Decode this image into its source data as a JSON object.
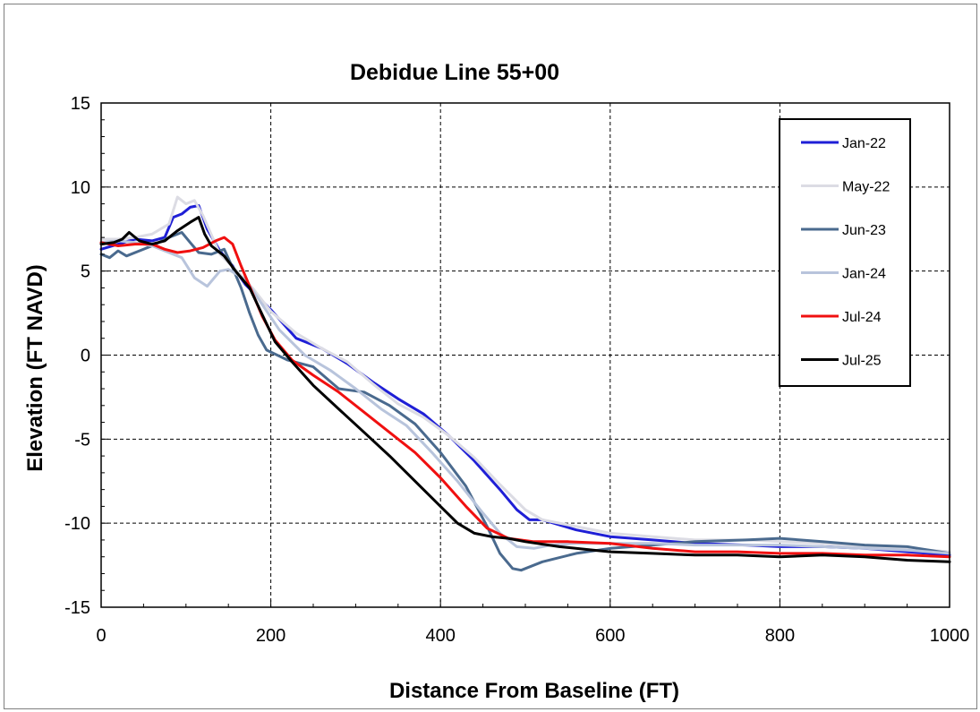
{
  "chart_data": {
    "type": "line",
    "title": "Debidue Line 55+00",
    "xlabel": "Distance From Baseline (FT)",
    "ylabel": "Elevation (FT NAVD)",
    "xlim": [
      0,
      1000
    ],
    "ylim": [
      -15,
      15
    ],
    "xticks": [
      0,
      200,
      400,
      600,
      800,
      1000
    ],
    "yticks": [
      -15,
      -10,
      -5,
      0,
      5,
      10,
      15
    ],
    "xtick_labels": [
      "0",
      "200",
      "400",
      "600",
      "800",
      "1000"
    ],
    "ytick_labels": [
      "-15",
      "-10",
      "-5",
      "0",
      "5",
      "10",
      "15"
    ],
    "grid": "dashed",
    "legend_position": "top-right",
    "series": [
      {
        "name": "Jan-22",
        "color": "#1f1fd6",
        "points": [
          [
            0,
            6.3
          ],
          [
            20,
            6.6
          ],
          [
            40,
            6.9
          ],
          [
            60,
            6.8
          ],
          [
            75,
            7.0
          ],
          [
            85,
            8.2
          ],
          [
            95,
            8.4
          ],
          [
            105,
            8.8
          ],
          [
            115,
            8.9
          ],
          [
            125,
            7.5
          ],
          [
            140,
            6.2
          ],
          [
            155,
            5.3
          ],
          [
            170,
            4.2
          ],
          [
            200,
            2.7
          ],
          [
            230,
            1.0
          ],
          [
            260,
            0.4
          ],
          [
            290,
            -0.5
          ],
          [
            320,
            -1.6
          ],
          [
            350,
            -2.6
          ],
          [
            380,
            -3.5
          ],
          [
            410,
            -4.8
          ],
          [
            440,
            -6.3
          ],
          [
            470,
            -8.0
          ],
          [
            490,
            -9.2
          ],
          [
            505,
            -9.8
          ],
          [
            520,
            -9.8
          ],
          [
            560,
            -10.4
          ],
          [
            600,
            -10.8
          ],
          [
            650,
            -11.0
          ],
          [
            700,
            -11.2
          ],
          [
            760,
            -11.3
          ],
          [
            800,
            -11.4
          ],
          [
            850,
            -11.4
          ],
          [
            900,
            -11.5
          ],
          [
            950,
            -11.7
          ],
          [
            1000,
            -11.9
          ]
        ]
      },
      {
        "name": "May-22",
        "color": "#dcdce4",
        "points": [
          [
            0,
            6.9
          ],
          [
            20,
            6.9
          ],
          [
            40,
            7.0
          ],
          [
            60,
            7.2
          ],
          [
            80,
            7.8
          ],
          [
            90,
            9.4
          ],
          [
            100,
            9.0
          ],
          [
            110,
            9.2
          ],
          [
            120,
            8.3
          ],
          [
            140,
            6.0
          ],
          [
            160,
            5.0
          ],
          [
            180,
            3.9
          ],
          [
            200,
            2.6
          ],
          [
            230,
            1.3
          ],
          [
            260,
            0.4
          ],
          [
            290,
            -0.4
          ],
          [
            320,
            -1.7
          ],
          [
            350,
            -2.9
          ],
          [
            380,
            -3.7
          ],
          [
            410,
            -4.8
          ],
          [
            440,
            -6.1
          ],
          [
            470,
            -7.7
          ],
          [
            500,
            -9.2
          ],
          [
            520,
            -9.8
          ],
          [
            560,
            -10.2
          ],
          [
            600,
            -10.6
          ],
          [
            650,
            -10.8
          ],
          [
            700,
            -11.0
          ],
          [
            760,
            -11.0
          ],
          [
            800,
            -11.1
          ],
          [
            850,
            -11.2
          ],
          [
            900,
            -11.4
          ],
          [
            950,
            -11.5
          ],
          [
            1000,
            -11.7
          ]
        ]
      },
      {
        "name": "Jun-23",
        "color": "#4a6a8e",
        "points": [
          [
            0,
            6.0
          ],
          [
            10,
            5.8
          ],
          [
            20,
            6.2
          ],
          [
            30,
            5.9
          ],
          [
            45,
            6.2
          ],
          [
            60,
            6.5
          ],
          [
            80,
            7.0
          ],
          [
            95,
            7.3
          ],
          [
            105,
            6.7
          ],
          [
            115,
            6.1
          ],
          [
            130,
            6.0
          ],
          [
            145,
            6.3
          ],
          [
            155,
            5.2
          ],
          [
            165,
            4.0
          ],
          [
            175,
            2.5
          ],
          [
            185,
            1.2
          ],
          [
            195,
            0.3
          ],
          [
            220,
            -0.3
          ],
          [
            250,
            -0.7
          ],
          [
            280,
            -2.0
          ],
          [
            310,
            -2.2
          ],
          [
            340,
            -3.0
          ],
          [
            370,
            -4.1
          ],
          [
            400,
            -5.8
          ],
          [
            430,
            -7.8
          ],
          [
            455,
            -10.2
          ],
          [
            470,
            -11.8
          ],
          [
            485,
            -12.7
          ],
          [
            495,
            -12.8
          ],
          [
            520,
            -12.3
          ],
          [
            560,
            -11.8
          ],
          [
            600,
            -11.5
          ],
          [
            650,
            -11.3
          ],
          [
            700,
            -11.1
          ],
          [
            760,
            -11.0
          ],
          [
            800,
            -10.9
          ],
          [
            850,
            -11.1
          ],
          [
            900,
            -11.3
          ],
          [
            950,
            -11.4
          ],
          [
            1000,
            -11.8
          ]
        ]
      },
      {
        "name": "Jan-24",
        "color": "#b8c4dc",
        "points": [
          [
            0,
            6.7
          ],
          [
            20,
            6.8
          ],
          [
            40,
            6.7
          ],
          [
            60,
            6.5
          ],
          [
            80,
            6.1
          ],
          [
            95,
            5.8
          ],
          [
            110,
            4.6
          ],
          [
            125,
            4.1
          ],
          [
            140,
            5.0
          ],
          [
            150,
            5.1
          ],
          [
            170,
            4.5
          ],
          [
            190,
            3.0
          ],
          [
            210,
            1.5
          ],
          [
            240,
            0.0
          ],
          [
            270,
            -0.9
          ],
          [
            300,
            -2.0
          ],
          [
            330,
            -3.2
          ],
          [
            360,
            -4.2
          ],
          [
            390,
            -5.8
          ],
          [
            420,
            -7.5
          ],
          [
            450,
            -9.4
          ],
          [
            470,
            -10.6
          ],
          [
            490,
            -11.4
          ],
          [
            510,
            -11.5
          ],
          [
            530,
            -11.3
          ],
          [
            560,
            -11.2
          ],
          [
            600,
            -11.2
          ],
          [
            650,
            -11.2
          ],
          [
            700,
            -11.3
          ],
          [
            760,
            -11.3
          ],
          [
            800,
            -11.3
          ],
          [
            850,
            -11.4
          ],
          [
            900,
            -11.5
          ],
          [
            950,
            -11.6
          ],
          [
            1000,
            -11.8
          ]
        ]
      },
      {
        "name": "Jul-24",
        "color": "#f01010",
        "points": [
          [
            0,
            6.7
          ],
          [
            20,
            6.5
          ],
          [
            40,
            6.6
          ],
          [
            60,
            6.6
          ],
          [
            75,
            6.3
          ],
          [
            90,
            6.1
          ],
          [
            105,
            6.2
          ],
          [
            120,
            6.4
          ],
          [
            135,
            6.8
          ],
          [
            145,
            7.0
          ],
          [
            155,
            6.6
          ],
          [
            165,
            5.3
          ],
          [
            175,
            4.1
          ],
          [
            190,
            2.3
          ],
          [
            205,
            0.9
          ],
          [
            225,
            -0.3
          ],
          [
            250,
            -1.2
          ],
          [
            280,
            -2.2
          ],
          [
            310,
            -3.4
          ],
          [
            340,
            -4.6
          ],
          [
            370,
            -5.8
          ],
          [
            400,
            -7.3
          ],
          [
            430,
            -9.0
          ],
          [
            455,
            -10.3
          ],
          [
            480,
            -10.9
          ],
          [
            510,
            -11.1
          ],
          [
            550,
            -11.1
          ],
          [
            600,
            -11.2
          ],
          [
            650,
            -11.5
          ],
          [
            700,
            -11.7
          ],
          [
            750,
            -11.7
          ],
          [
            800,
            -11.8
          ],
          [
            850,
            -11.8
          ],
          [
            900,
            -11.9
          ],
          [
            950,
            -11.9
          ],
          [
            1000,
            -12.0
          ]
        ]
      },
      {
        "name": "Jul-25",
        "color": "#000000",
        "points": [
          [
            0,
            6.6
          ],
          [
            15,
            6.7
          ],
          [
            25,
            6.9
          ],
          [
            33,
            7.3
          ],
          [
            45,
            6.8
          ],
          [
            60,
            6.6
          ],
          [
            75,
            6.8
          ],
          [
            90,
            7.4
          ],
          [
            105,
            7.9
          ],
          [
            115,
            8.2
          ],
          [
            122,
            7.2
          ],
          [
            130,
            6.5
          ],
          [
            145,
            5.9
          ],
          [
            160,
            4.9
          ],
          [
            175,
            4.0
          ],
          [
            190,
            2.4
          ],
          [
            205,
            0.8
          ],
          [
            225,
            -0.4
          ],
          [
            250,
            -1.8
          ],
          [
            280,
            -3.2
          ],
          [
            310,
            -4.6
          ],
          [
            340,
            -6.0
          ],
          [
            370,
            -7.5
          ],
          [
            400,
            -9.0
          ],
          [
            420,
            -10.0
          ],
          [
            440,
            -10.6
          ],
          [
            460,
            -10.8
          ],
          [
            480,
            -10.9
          ],
          [
            500,
            -11.1
          ],
          [
            540,
            -11.4
          ],
          [
            580,
            -11.6
          ],
          [
            600,
            -11.7
          ],
          [
            650,
            -11.8
          ],
          [
            700,
            -11.9
          ],
          [
            750,
            -11.9
          ],
          [
            800,
            -12.0
          ],
          [
            850,
            -11.9
          ],
          [
            900,
            -12.0
          ],
          [
            950,
            -12.2
          ],
          [
            1000,
            -12.3
          ]
        ]
      }
    ]
  }
}
